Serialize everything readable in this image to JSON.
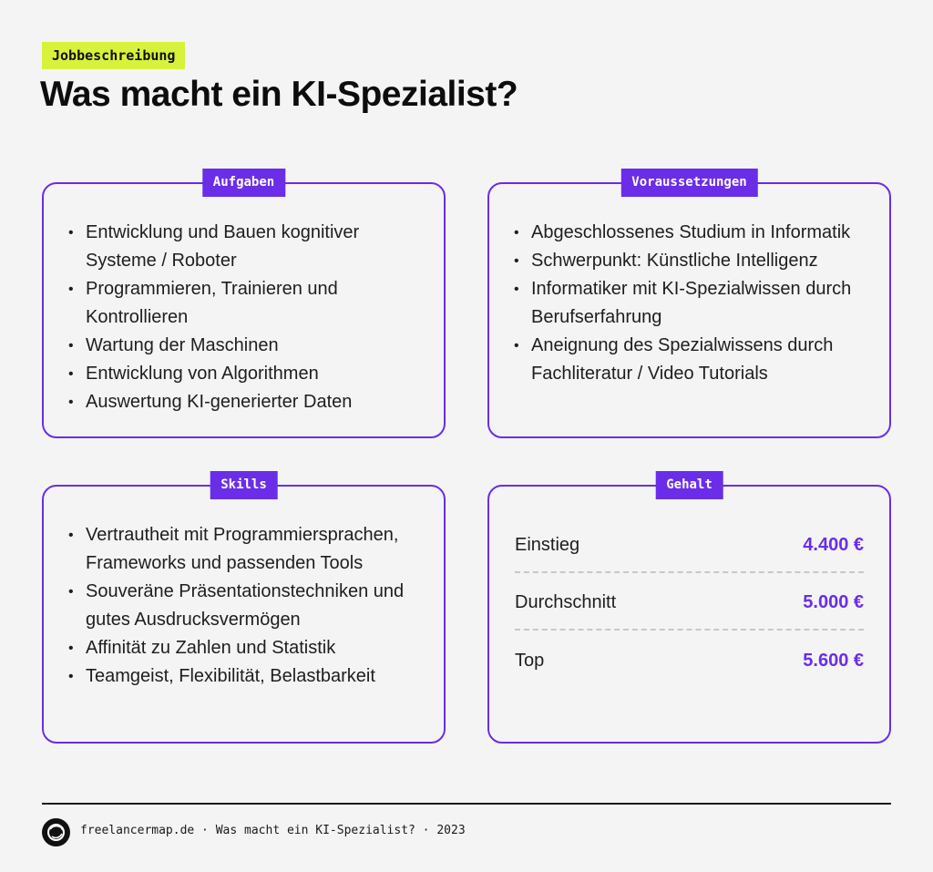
{
  "header": {
    "tag": "Jobbeschreibung",
    "title": "Was macht ein KI-Spezialist?"
  },
  "colors": {
    "accent": "#6a2de8",
    "tag_background": "#d8f23c",
    "background": "#f4f4f4"
  },
  "cards": {
    "aufgaben": {
      "label": "Aufgaben",
      "items": [
        "Entwicklung und Bauen kognitiver Systeme / Roboter",
        "Programmieren, Trainieren und Kontrollieren",
        "Wartung der Maschinen",
        "Entwicklung von Algorithmen",
        "Auswertung KI-generierter Daten"
      ]
    },
    "voraussetzungen": {
      "label": "Voraussetzungen",
      "items": [
        "Abgeschlossenes Studium in Informatik",
        "Schwerpunkt: Künstliche Intelligenz",
        "Informatiker mit KI-Spezialwissen durch Berufserfahrung",
        "Aneignung des Spezialwissens durch Fachliteratur / Video Tutorials"
      ]
    },
    "skills": {
      "label": "Skills",
      "items": [
        "Vertrautheit mit Programmiersprachen, Frameworks und passenden Tools",
        "Souveräne Präsentationstechniken und gutes Ausdrucksvermögen",
        "Affinität zu Zahlen und Statistik",
        "Teamgeist, Flexibilität, Belastbarkeit"
      ]
    },
    "gehalt": {
      "label": "Gehalt",
      "rows": [
        {
          "label": "Einstieg",
          "value": "4.400 €"
        },
        {
          "label": "Durchschnitt",
          "value": "5.000 €"
        },
        {
          "label": "Top",
          "value": "5.600 €"
        }
      ]
    }
  },
  "footer": {
    "logo_icon": "freelancermap-logo-icon",
    "text": "freelancermap.de · Was macht ein KI-Spezialist? · 2023"
  }
}
